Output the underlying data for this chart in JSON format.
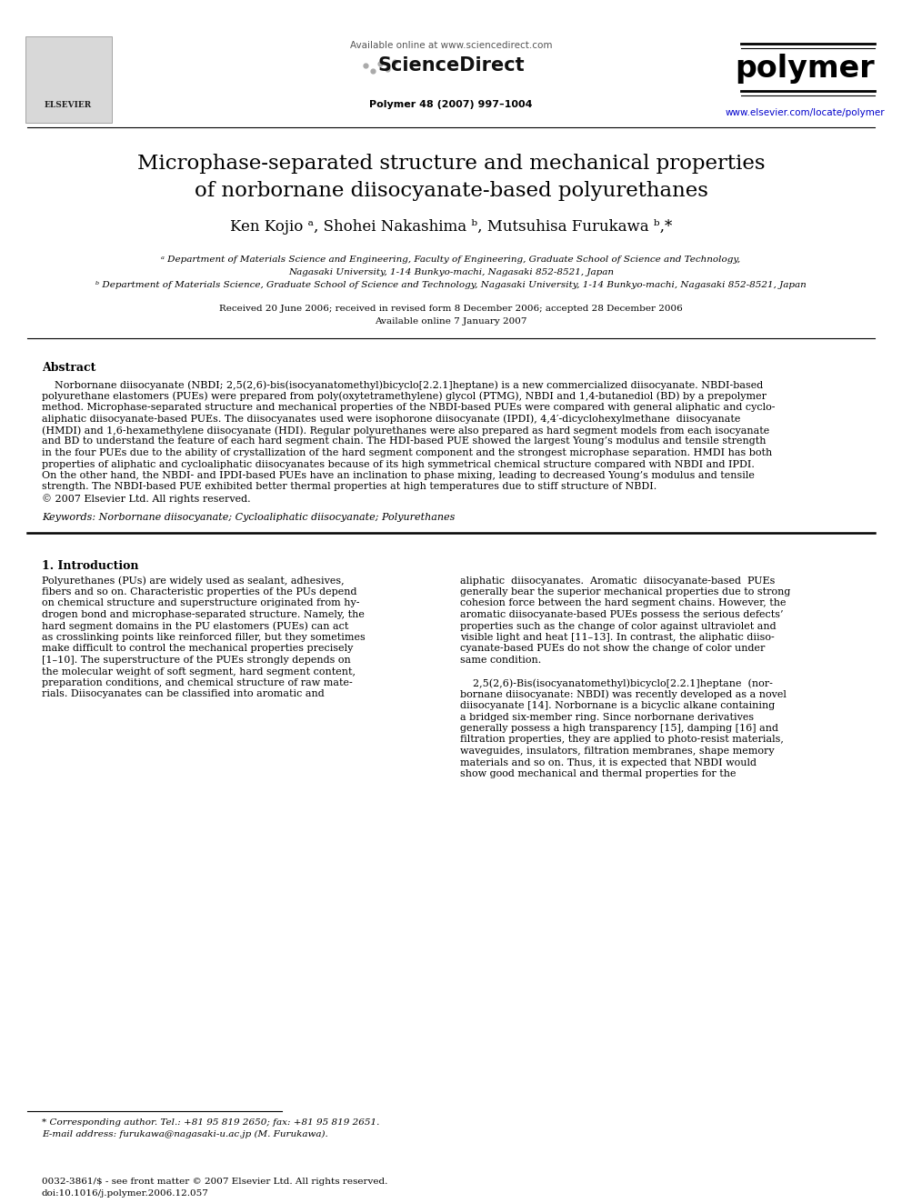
{
  "bg_color": "#ffffff",
  "title_line1": "Microphase-separated structure and mechanical properties",
  "title_line2": "of norbornane diisocyanate-based polyurethanes",
  "authors": "Ken Kojio ᵃ, Shohei Nakashima ᵇ, Mutsuhisa Furukawa ᵇ,*",
  "affil_a": "ᵃ Department of Materials Science and Engineering, Faculty of Engineering, Graduate School of Science and Technology,",
  "affil_a2": "Nagasaki University, 1-14 Bunkyo-machi, Nagasaki 852-8521, Japan",
  "affil_b": "ᵇ Department of Materials Science, Graduate School of Science and Technology, Nagasaki University, 1-14 Bunkyo-machi, Nagasaki 852-8521, Japan",
  "received": "Received 20 June 2006; received in revised form 8 December 2006; accepted 28 December 2006",
  "available": "Available online 7 January 2007",
  "journal_ref": "Polymer 48 (2007) 997–1004",
  "url": "www.elsevier.com/locate/polymer",
  "available_online": "Available online at www.sciencedirect.com",
  "abstract_title": "Abstract",
  "keywords": "Keywords: Norbornane diisocyanate; Cycloaliphatic diisocyanate; Polyurethanes",
  "section1_title": "1. Introduction",
  "footnote_star": "* Corresponding author. Tel.: +81 95 819 2650; fax: +81 95 819 2651.",
  "footnote_email": "E-mail address: furukawa@nagasaki-u.ac.jp (M. Furukawa).",
  "footer_left": "0032-3861/$ - see front matter © 2007 Elsevier Ltd. All rights reserved.",
  "footer_doi": "doi:10.1016/j.polymer.2006.12.057",
  "abstract_lines": [
    "    Norbornane diisocyanate (NBDI; 2,5(2,6)-bis(isocyanatomethyl)bicyclo[2.2.1]heptane) is a new commercialized diisocyanate. NBDI-based",
    "polyurethane elastomers (PUEs) were prepared from poly(oxytetramethylene) glycol (PTMG), NBDI and 1,4-butanediol (BD) by a prepolymer",
    "method. Microphase-separated structure and mechanical properties of the NBDI-based PUEs were compared with general aliphatic and cyclo-",
    "aliphatic diisocyanate-based PUEs. The diisocyanates used were isophorone diisocyanate (IPDI), 4,4′-dicyclohexylmethane  diisocyanate",
    "(HMDI) and 1,6-hexamethylene diisocyanate (HDI). Regular polyurethanes were also prepared as hard segment models from each isocyanate",
    "and BD to understand the feature of each hard segment chain. The HDI-based PUE showed the largest Young’s modulus and tensile strength",
    "in the four PUEs due to the ability of crystallization of the hard segment component and the strongest microphase separation. HMDI has both",
    "properties of aliphatic and cycloaliphatic diisocyanates because of its high symmetrical chemical structure compared with NBDI and IPDI.",
    "On the other hand, the NBDI- and IPDI-based PUEs have an inclination to phase mixing, leading to decreased Young’s modulus and tensile",
    "strength. The NBDI-based PUE exhibited better thermal properties at high temperatures due to stiff structure of NBDI.",
    "© 2007 Elsevier Ltd. All rights reserved."
  ],
  "col1_lines": [
    "Polyurethanes (PUs) are widely used as sealant, adhesives,",
    "fibers and so on. Characteristic properties of the PUs depend",
    "on chemical structure and superstructure originated from hy-",
    "drogen bond and microphase-separated structure. Namely, the",
    "hard segment domains in the PU elastomers (PUEs) can act",
    "as crosslinking points like reinforced filler, but they sometimes",
    "make difficult to control the mechanical properties precisely",
    "[1–10]. The superstructure of the PUEs strongly depends on",
    "the molecular weight of soft segment, hard segment content,",
    "preparation conditions, and chemical structure of raw mate-",
    "rials. Diisocyanates can be classified into aromatic and"
  ],
  "col2_lines": [
    "aliphatic  diisocyanates.  Aromatic  diisocyanate-based  PUEs",
    "generally bear the superior mechanical properties due to strong",
    "cohesion force between the hard segment chains. However, the",
    "aromatic diisocyanate-based PUEs possess the serious defects’",
    "properties such as the change of color against ultraviolet and",
    "visible light and heat [11–13]. In contrast, the aliphatic diiso-",
    "cyanate-based PUEs do not show the change of color under",
    "same condition.",
    "",
    "    2,5(2,6)-Bis(isocyanatomethyl)bicyclo[2.2.1]heptane  (nor-",
    "bornane diisocyanate: NBDI) was recently developed as a novel",
    "diisocyanate [14]. Norbornane is a bicyclic alkane containing",
    "a bridged six-member ring. Since norbornane derivatives",
    "generally possess a high transparency [15], damping [16] and",
    "filtration properties, they are applied to photo-resist materials,",
    "waveguides, insulators, filtration membranes, shape memory",
    "materials and so on. Thus, it is expected that NBDI would",
    "show good mechanical and thermal properties for the"
  ]
}
